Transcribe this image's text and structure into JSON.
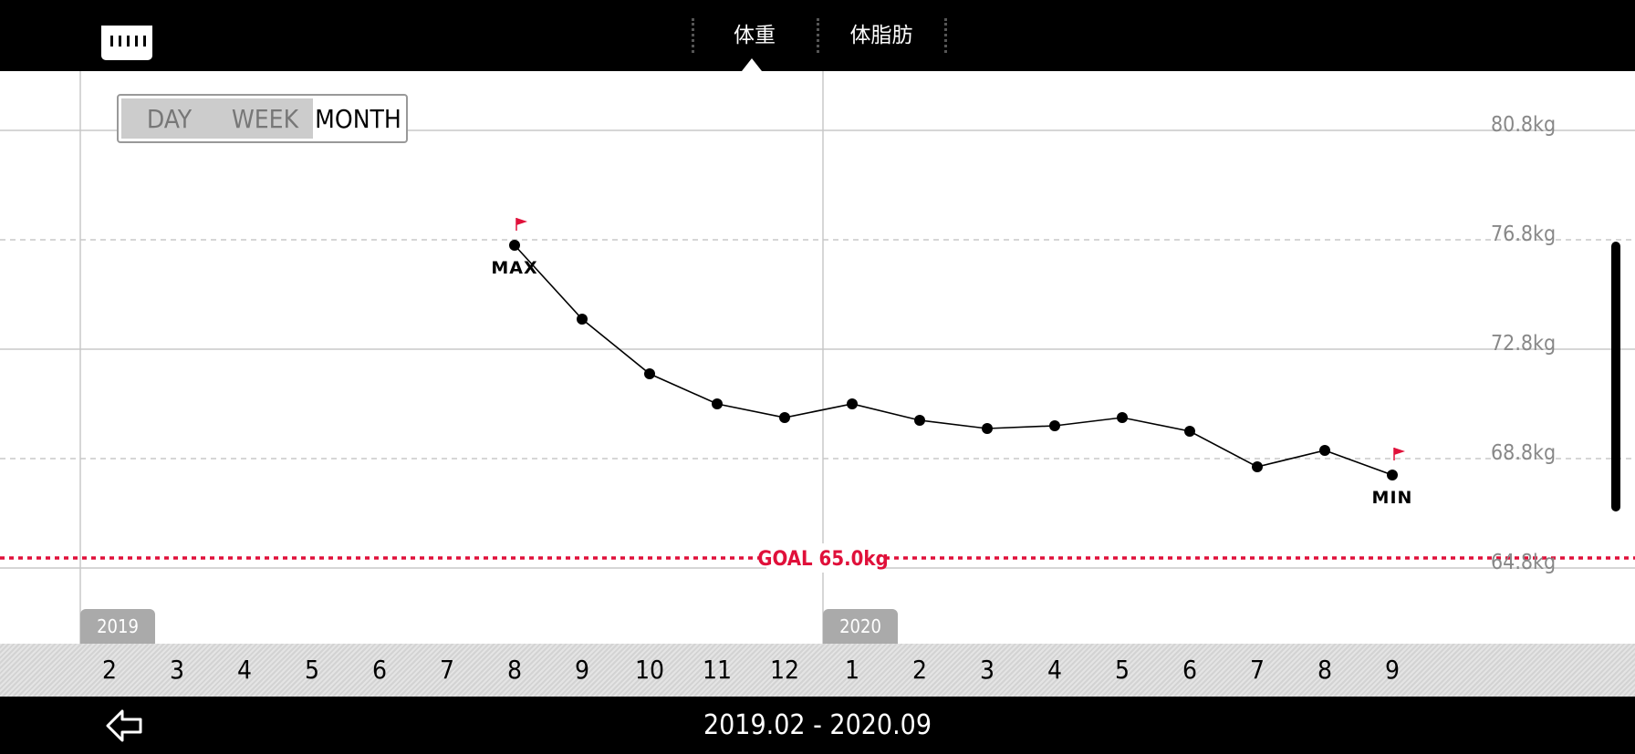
{
  "app": {
    "logo_icon": "scale-logo-icon"
  },
  "tabs": [
    {
      "label": "体重",
      "active": true
    },
    {
      "label": "体脂肪",
      "active": false
    }
  ],
  "range_toggle": {
    "options": [
      "DAY",
      "WEEK",
      "MONTH"
    ],
    "selected": "MONTH"
  },
  "goal": {
    "label": "GOAL 65.0kg",
    "value": 65.0,
    "color": "#e0103a"
  },
  "years": [
    "2019",
    "2020"
  ],
  "date_range": "2019.02 - 2020.09",
  "back_icon": "back-arrow-icon",
  "chart_data": {
    "type": "line",
    "ylabel_unit": "kg",
    "y_ticks": [
      "80.8kg",
      "76.8kg",
      "72.8kg",
      "68.8kg",
      "64.8kg"
    ],
    "y_tick_values": [
      80.8,
      76.8,
      72.8,
      68.8,
      64.8
    ],
    "ylim": [
      62.8,
      82.9
    ],
    "x_months": [
      "2",
      "3",
      "4",
      "5",
      "6",
      "7",
      "8",
      "9",
      "10",
      "11",
      "12",
      "1",
      "2",
      "3",
      "4",
      "5",
      "6",
      "7",
      "8",
      "9"
    ],
    "series": [
      {
        "x": [
          "2019-08",
          "2019-09",
          "2019-10",
          "2019-11",
          "2019-12",
          "2020-01",
          "2020-02",
          "2020-03",
          "2020-04",
          "2020-05",
          "2020-06",
          "2020-07",
          "2020-08",
          "2020-09"
        ],
        "values": [
          76.6,
          73.9,
          71.9,
          70.8,
          70.3,
          70.8,
          70.2,
          69.9,
          70.0,
          70.3,
          69.8,
          68.5,
          69.1,
          68.2
        ],
        "color": "#000000"
      }
    ],
    "annotations": [
      {
        "label": "MAX",
        "x": "2019-08",
        "value": 76.6,
        "flag_color": "#e0103a"
      },
      {
        "label": "MIN",
        "x": "2020-09",
        "value": 68.2,
        "flag_color": "#e0103a"
      }
    ],
    "grid": true
  }
}
